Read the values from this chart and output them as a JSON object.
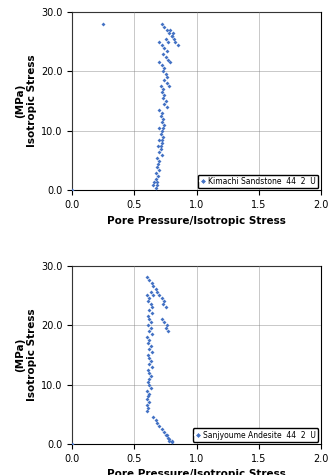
{
  "top_scatter": {
    "x": [
      0.0,
      0.25,
      0.72,
      0.74,
      0.76,
      0.78,
      0.8,
      0.75,
      0.77,
      0.7,
      0.72,
      0.74,
      0.76,
      0.73,
      0.75,
      0.77,
      0.79,
      0.7,
      0.72,
      0.74,
      0.73,
      0.75,
      0.76,
      0.74,
      0.76,
      0.78,
      0.71,
      0.73,
      0.72,
      0.74,
      0.73,
      0.75,
      0.74,
      0.76,
      0.7,
      0.72,
      0.71,
      0.73,
      0.72,
      0.74,
      0.73,
      0.7,
      0.72,
      0.71,
      0.73,
      0.72,
      0.7,
      0.72,
      0.71,
      0.69,
      0.71,
      0.7,
      0.72,
      0.68,
      0.7,
      0.69,
      0.68,
      0.7,
      0.67,
      0.69,
      0.67,
      0.68,
      0.66,
      0.68,
      0.65,
      0.67,
      0.79,
      0.81,
      0.8,
      0.82,
      0.83,
      0.85
    ],
    "y": [
      0.0,
      28.0,
      28.0,
      27.5,
      27.0,
      26.5,
      26.0,
      25.5,
      25.0,
      25.0,
      24.5,
      24.0,
      23.5,
      23.0,
      22.5,
      22.0,
      21.5,
      21.5,
      21.0,
      20.5,
      20.0,
      19.5,
      19.0,
      18.5,
      18.0,
      17.5,
      17.5,
      17.0,
      16.5,
      16.0,
      15.5,
      15.0,
      14.5,
      14.0,
      13.5,
      13.0,
      12.5,
      12.0,
      11.5,
      11.0,
      10.5,
      10.5,
      10.0,
      9.5,
      9.0,
      8.5,
      8.5,
      8.0,
      7.5,
      7.5,
      7.0,
      6.5,
      6.0,
      5.5,
      5.0,
      4.5,
      4.0,
      3.5,
      3.0,
      2.5,
      2.0,
      1.5,
      1.5,
      1.0,
      1.0,
      0.5,
      27.0,
      26.5,
      26.0,
      25.5,
      25.0,
      24.5
    ],
    "legend": "Kimachi Sandstone  44  2  U"
  },
  "bottom_scatter": {
    "x": [
      0.0,
      0.6,
      0.62,
      0.64,
      0.65,
      0.67,
      0.63,
      0.65,
      0.6,
      0.62,
      0.61,
      0.63,
      0.64,
      0.62,
      0.64,
      0.61,
      0.62,
      0.63,
      0.61,
      0.63,
      0.62,
      0.64,
      0.6,
      0.62,
      0.61,
      0.63,
      0.62,
      0.64,
      0.61,
      0.62,
      0.63,
      0.62,
      0.64,
      0.61,
      0.62,
      0.63,
      0.62,
      0.61,
      0.62,
      0.63,
      0.6,
      0.62,
      0.61,
      0.6,
      0.62,
      0.6,
      0.61,
      0.6,
      0.65,
      0.67,
      0.68,
      0.7,
      0.72,
      0.74,
      0.76,
      0.75,
      0.77,
      0.78,
      0.8,
      0.78,
      0.8,
      0.72,
      0.74,
      0.76,
      0.75,
      0.77,
      0.68,
      0.7,
      0.72,
      0.74,
      0.73,
      0.75
    ],
    "y": [
      0.0,
      28.0,
      27.5,
      27.0,
      26.5,
      26.0,
      25.5,
      25.0,
      25.0,
      24.5,
      24.0,
      23.5,
      23.0,
      22.5,
      22.0,
      21.5,
      21.0,
      20.5,
      20.0,
      19.5,
      19.0,
      18.5,
      18.0,
      17.5,
      17.0,
      16.5,
      16.0,
      15.5,
      15.0,
      14.5,
      14.0,
      13.5,
      13.0,
      12.5,
      12.0,
      11.5,
      11.0,
      10.5,
      10.0,
      9.5,
      9.0,
      8.5,
      8.0,
      7.5,
      7.0,
      6.5,
      6.0,
      5.5,
      4.5,
      4.0,
      3.5,
      3.0,
      2.5,
      2.0,
      1.5,
      1.5,
      1.0,
      0.8,
      0.5,
      0.5,
      0.3,
      21.0,
      20.5,
      20.0,
      19.5,
      19.0,
      25.5,
      25.0,
      24.5,
      24.0,
      23.5,
      23.0
    ],
    "legend": "Sanjyoume Andesite  44  2  U"
  },
  "marker_color": "#4472C4",
  "marker_size": 4,
  "marker": "D",
  "xlim": [
    0.0,
    2.0
  ],
  "ylim": [
    0.0,
    30.0
  ],
  "xticks": [
    0.0,
    0.5,
    1.0,
    1.5,
    2.0
  ],
  "yticks": [
    0.0,
    10.0,
    20.0,
    30.0
  ],
  "xlabel": "Pore Pressure/Isotropic Stress",
  "ylabel_top": "(MPa)",
  "ylabel_bottom": "Isotropic Stress",
  "grid": true,
  "axis_label_fontsize": 7.5,
  "tick_fontsize": 7,
  "legend_fontsize": 5.5
}
